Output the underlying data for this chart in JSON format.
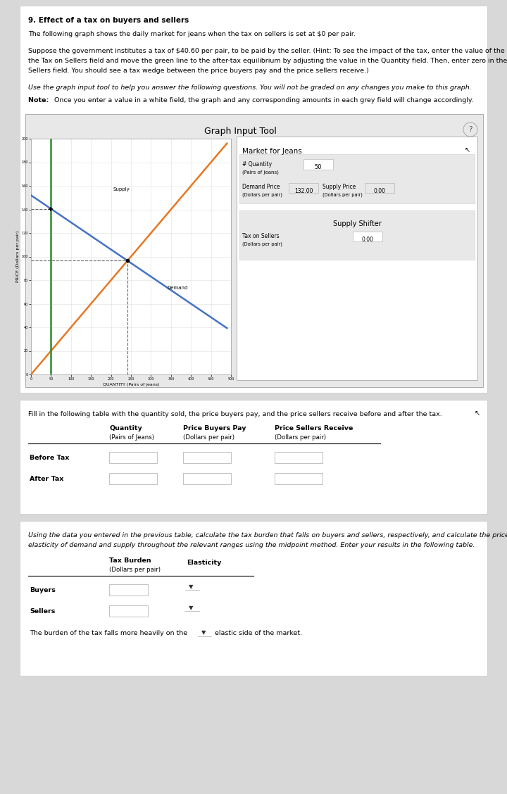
{
  "title": "9. Effect of a tax on buyers and sellers",
  "paragraph1": "The following graph shows the daily market for jeans when the tax on sellers is set at $0 per pair.",
  "paragraph2a": "Suppose the government institutes a tax of $40.60 per pair, to be paid by the seller. (Hint: To see the impact of the tax, enter the value of the tax in",
  "paragraph2b": "the Tax on Sellers field and move the green line to the after-tax equilibrium by adjusting the value in the Quantity field. Then, enter zero in the Tax on",
  "paragraph2c": "Sellers field. You should see a tax wedge between the price buyers pay and the price sellers receive.)",
  "paragraph3": "Use the graph input tool to help you answer the following questions. You will not be graded on any changes you make to this graph.",
  "note_bold": "Note: ",
  "note_rest": "Once you enter a value in a white field, the graph and any corresponding amounts in each grey field will change accordingly.",
  "graph_title": "Graph Input Tool",
  "market_title": "Market for Jeans",
  "quantity_value": "50",
  "demand_price_value": "132.00",
  "supply_price_value": "0.00",
  "tax_sellers_value": "0.00",
  "xlabel": "QUANTITY (Pairs of jeans)",
  "ylabel": "PRICE (Dollars per pair)",
  "supply_label": "Supply",
  "demand_label": "Demand",
  "supply_color": "#e87722",
  "demand_color": "#4472c4",
  "green_line_color": "#2e8b2e",
  "dashed_color": "#666666",
  "table1_title": "Fill in the following table with the quantity sold, the price buyers pay, and the price sellers receive before and after the tax.",
  "table2_intro_a": "Using the data you entered in the previous table, calculate the tax burden that falls on buyers and sellers, respectively, and calculate the price",
  "table2_intro_b": "elasticity of demand and supply throughout the relevant ranges using the midpoint method. Enter your results in the following table.",
  "burden_text": "The burden of the tax falls more heavily on the",
  "burden_end": "elastic side of the market.",
  "page_bg": "#d8d8d8",
  "panel_bg": "#f2f2f2",
  "white": "#ffffff",
  "light_grey": "#e8e8e8",
  "medium_grey": "#cccccc",
  "dark_grey": "#aaaaaa",
  "text_color": "#1a1a1a"
}
